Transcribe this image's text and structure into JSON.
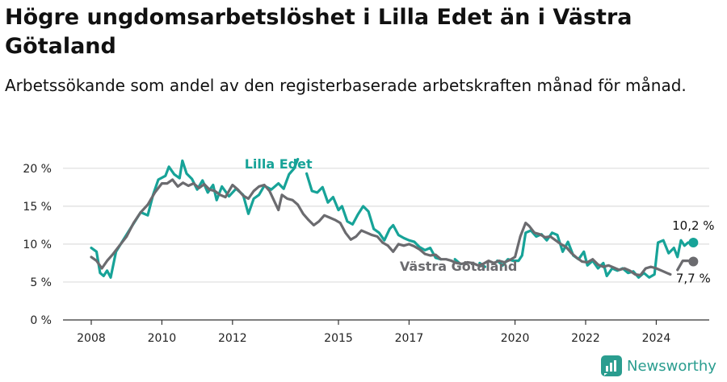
{
  "header": {
    "title": "Högre ungdomsarbetslöshet i Lilla Edet än i Västra Götaland",
    "subtitle": "Arbetssökande som andel av den registerbaserade arbetskraften månad för månad."
  },
  "brand": {
    "name": "Newsworthy",
    "icon": "newsworthy-logo-icon"
  },
  "chart_data": {
    "type": "line",
    "title": "Högre ungdomsarbetslöshet i Lilla Edet än i Västra Götaland",
    "subtitle": "Arbetssökande som andel av den registerbaserade arbetskraften månad för månad.",
    "xlabel": "",
    "ylabel": "",
    "x_ticks": [
      "2008",
      "2010",
      "2012",
      "2015",
      "2017",
      "2020",
      "2022",
      "2024"
    ],
    "x_tick_values": [
      2008,
      2010,
      2012,
      2015,
      2017,
      2020,
      2022,
      2024
    ],
    "y_ticks": [
      "0 %",
      "5 %",
      "10 %",
      "15 %",
      "20 %"
    ],
    "y_tick_values": [
      0,
      5,
      10,
      15,
      20
    ],
    "xlim": [
      2007.2,
      2025.5
    ],
    "ylim": [
      0,
      22
    ],
    "grid": true,
    "colors": {
      "lilla_edet": "#17a398",
      "vastra_gotaland": "#6b6b6f",
      "grid": "#dddddd",
      "axis": "#333333"
    },
    "series": [
      {
        "name": "Lilla Edet",
        "label": "Lilla Edet",
        "end_label": "10,2 %",
        "points": [
          [
            2008.0,
            9.5
          ],
          [
            2008.15,
            9.0
          ],
          [
            2008.25,
            6.2
          ],
          [
            2008.35,
            5.8
          ],
          [
            2008.45,
            6.5
          ],
          [
            2008.55,
            5.6
          ],
          [
            2008.7,
            9.0
          ],
          [
            2008.9,
            10.5
          ],
          [
            2009.1,
            12.0
          ],
          [
            2009.4,
            14.2
          ],
          [
            2009.6,
            13.8
          ],
          [
            2009.75,
            16.5
          ],
          [
            2009.9,
            18.5
          ],
          [
            2010.1,
            19.0
          ],
          [
            2010.2,
            20.2
          ],
          [
            2010.35,
            19.2
          ],
          [
            2010.5,
            18.7
          ],
          [
            2010.58,
            21.0
          ],
          [
            2010.7,
            19.3
          ],
          [
            2010.85,
            18.6
          ],
          [
            2011.0,
            17.2
          ],
          [
            2011.15,
            18.4
          ],
          [
            2011.3,
            16.8
          ],
          [
            2011.45,
            17.8
          ],
          [
            2011.55,
            15.8
          ],
          [
            2011.7,
            17.6
          ],
          [
            2011.9,
            16.3
          ],
          [
            2012.1,
            17.3
          ],
          [
            2012.3,
            16.5
          ],
          [
            2012.45,
            14.0
          ],
          [
            2012.6,
            16.0
          ],
          [
            2012.75,
            16.5
          ],
          [
            2012.9,
            17.7
          ],
          [
            2013.1,
            17.2
          ],
          [
            2013.3,
            18.0
          ],
          [
            2013.45,
            17.3
          ],
          [
            2013.6,
            19.2
          ],
          [
            2013.75,
            20.0
          ],
          [
            2013.85,
            21.2
          ],
          [
            2013.95,
            "gap"
          ],
          [
            2014.1,
            19.3
          ],
          [
            2014.25,
            17.0
          ],
          [
            2014.4,
            16.8
          ],
          [
            2014.55,
            17.5
          ],
          [
            2014.7,
            15.5
          ],
          [
            2014.85,
            16.2
          ],
          [
            2015.0,
            14.5
          ],
          [
            2015.1,
            15.0
          ],
          [
            2015.25,
            13.0
          ],
          [
            2015.4,
            12.6
          ],
          [
            2015.55,
            13.9
          ],
          [
            2015.7,
            15.0
          ],
          [
            2015.85,
            14.3
          ],
          [
            2016.0,
            12.0
          ],
          [
            2016.15,
            11.5
          ],
          [
            2016.3,
            10.5
          ],
          [
            2016.45,
            12.0
          ],
          [
            2016.55,
            12.5
          ],
          [
            2016.7,
            11.2
          ],
          [
            2016.85,
            10.8
          ],
          [
            2017.0,
            10.5
          ],
          [
            2017.15,
            10.3
          ],
          [
            2017.3,
            9.6
          ],
          [
            2017.45,
            9.2
          ],
          [
            2017.6,
            9.5
          ],
          [
            2017.75,
            8.2
          ],
          [
            2017.9,
            8.0
          ],
          [
            2018.0,
            "gap"
          ],
          [
            2018.3,
            8.0
          ],
          [
            2018.45,
            7.4
          ],
          [
            2018.6,
            "gap"
          ],
          [
            2019.0,
            7.5
          ],
          [
            2019.15,
            7.0
          ],
          [
            2019.3,
            "gap"
          ],
          [
            2019.5,
            7.8
          ],
          [
            2019.65,
            7.2
          ],
          [
            2019.8,
            8.0
          ],
          [
            2019.95,
            7.8
          ],
          [
            2020.1,
            7.8
          ],
          [
            2020.2,
            8.5
          ],
          [
            2020.3,
            11.5
          ],
          [
            2020.45,
            11.8
          ],
          [
            2020.6,
            11.0
          ],
          [
            2020.75,
            11.3
          ],
          [
            2020.9,
            10.5
          ],
          [
            2021.05,
            11.5
          ],
          [
            2021.2,
            11.2
          ],
          [
            2021.35,
            9.0
          ],
          [
            2021.5,
            10.3
          ],
          [
            2021.65,
            8.5
          ],
          [
            2021.8,
            8.0
          ],
          [
            2021.95,
            9.0
          ],
          [
            2022.05,
            7.2
          ],
          [
            2022.2,
            7.8
          ],
          [
            2022.35,
            6.8
          ],
          [
            2022.5,
            7.5
          ],
          [
            2022.6,
            5.8
          ],
          [
            2022.75,
            6.8
          ],
          [
            2022.9,
            6.5
          ],
          [
            2023.05,
            6.8
          ],
          [
            2023.2,
            6.2
          ],
          [
            2023.35,
            6.4
          ],
          [
            2023.5,
            5.6
          ],
          [
            2023.65,
            6.2
          ],
          [
            2023.8,
            5.6
          ],
          [
            2023.95,
            6.0
          ],
          [
            2024.05,
            10.2
          ],
          [
            2024.2,
            10.5
          ],
          [
            2024.35,
            8.8
          ],
          [
            2024.5,
            9.5
          ],
          [
            2024.6,
            8.3
          ],
          [
            2024.7,
            10.5
          ],
          [
            2024.8,
            9.8
          ],
          [
            2024.9,
            10.2
          ],
          [
            2025.05,
            10.2
          ]
        ]
      },
      {
        "name": "Västra Götaland",
        "label": "Västra Götaland",
        "end_label": "7,7 %",
        "points": [
          [
            2008.0,
            8.3
          ],
          [
            2008.15,
            7.8
          ],
          [
            2008.3,
            6.8
          ],
          [
            2008.45,
            7.8
          ],
          [
            2008.6,
            8.6
          ],
          [
            2008.8,
            9.8
          ],
          [
            2009.0,
            11.0
          ],
          [
            2009.2,
            12.8
          ],
          [
            2009.4,
            14.2
          ],
          [
            2009.6,
            15.2
          ],
          [
            2009.8,
            16.8
          ],
          [
            2010.0,
            18.0
          ],
          [
            2010.15,
            18.0
          ],
          [
            2010.3,
            18.5
          ],
          [
            2010.45,
            17.6
          ],
          [
            2010.6,
            18.1
          ],
          [
            2010.75,
            17.7
          ],
          [
            2010.9,
            18.0
          ],
          [
            2011.05,
            17.4
          ],
          [
            2011.2,
            17.9
          ],
          [
            2011.35,
            17.2
          ],
          [
            2011.5,
            17.0
          ],
          [
            2011.65,
            16.5
          ],
          [
            2011.8,
            16.2
          ],
          [
            2012.0,
            17.8
          ],
          [
            2012.15,
            17.2
          ],
          [
            2012.3,
            16.4
          ],
          [
            2012.45,
            16.0
          ],
          [
            2012.6,
            17.0
          ],
          [
            2012.75,
            17.6
          ],
          [
            2012.9,
            17.8
          ],
          [
            2013.05,
            17.0
          ],
          [
            2013.2,
            15.5
          ],
          [
            2013.3,
            14.5
          ],
          [
            2013.4,
            16.5
          ],
          [
            2013.55,
            16.0
          ],
          [
            2013.7,
            15.8
          ],
          [
            2013.85,
            15.2
          ],
          [
            2014.0,
            14.0
          ],
          [
            2014.15,
            13.2
          ],
          [
            2014.3,
            12.5
          ],
          [
            2014.45,
            13.0
          ],
          [
            2014.6,
            13.8
          ],
          [
            2014.75,
            13.5
          ],
          [
            2014.9,
            13.2
          ],
          [
            2015.05,
            12.8
          ],
          [
            2015.2,
            11.5
          ],
          [
            2015.35,
            10.6
          ],
          [
            2015.5,
            11.0
          ],
          [
            2015.65,
            11.8
          ],
          [
            2015.8,
            11.5
          ],
          [
            2015.95,
            11.2
          ],
          [
            2016.1,
            11.0
          ],
          [
            2016.25,
            10.2
          ],
          [
            2016.4,
            9.8
          ],
          [
            2016.55,
            9.0
          ],
          [
            2016.7,
            10.0
          ],
          [
            2016.85,
            9.8
          ],
          [
            2017.0,
            10.0
          ],
          [
            2017.15,
            9.7
          ],
          [
            2017.3,
            9.3
          ],
          [
            2017.45,
            8.7
          ],
          [
            2017.6,
            8.5
          ],
          [
            2017.75,
            8.6
          ],
          [
            2017.9,
            8.0
          ],
          [
            2018.05,
            8.0
          ],
          [
            2018.2,
            7.8
          ],
          [
            2018.35,
            7.5
          ],
          [
            2018.5,
            7.4
          ],
          [
            2018.65,
            7.6
          ],
          [
            2018.8,
            7.5
          ],
          [
            2018.95,
            7.2
          ],
          [
            2019.1,
            7.4
          ],
          [
            2019.25,
            7.8
          ],
          [
            2019.4,
            7.5
          ],
          [
            2019.55,
            7.8
          ],
          [
            2019.7,
            7.6
          ],
          [
            2019.85,
            7.9
          ],
          [
            2020.0,
            8.3
          ],
          [
            2020.15,
            11.0
          ],
          [
            2020.3,
            12.8
          ],
          [
            2020.4,
            12.4
          ],
          [
            2020.55,
            11.5
          ],
          [
            2020.7,
            11.3
          ],
          [
            2020.85,
            10.9
          ],
          [
            2021.0,
            11.0
          ],
          [
            2021.15,
            10.5
          ],
          [
            2021.3,
            10.0
          ],
          [
            2021.45,
            9.6
          ],
          [
            2021.6,
            8.8
          ],
          [
            2021.75,
            8.2
          ],
          [
            2021.9,
            7.7
          ],
          [
            2022.05,
            7.6
          ],
          [
            2022.2,
            8.0
          ],
          [
            2022.35,
            7.3
          ],
          [
            2022.5,
            7.0
          ],
          [
            2022.65,
            7.2
          ],
          [
            2022.8,
            6.9
          ],
          [
            2022.95,
            6.6
          ],
          [
            2023.1,
            6.8
          ],
          [
            2023.25,
            6.5
          ],
          [
            2023.4,
            6.0
          ],
          [
            2023.55,
            5.9
          ],
          [
            2023.7,
            6.8
          ],
          [
            2023.85,
            7.0
          ],
          [
            2024.0,
            6.8
          ],
          [
            2024.15,
            6.5
          ],
          [
            2024.3,
            6.2
          ],
          [
            2024.4,
            6.0
          ],
          [
            2024.5,
            "gap"
          ],
          [
            2024.6,
            6.6
          ],
          [
            2024.75,
            7.8
          ],
          [
            2024.9,
            7.8
          ],
          [
            2025.05,
            7.7
          ]
        ]
      }
    ]
  }
}
